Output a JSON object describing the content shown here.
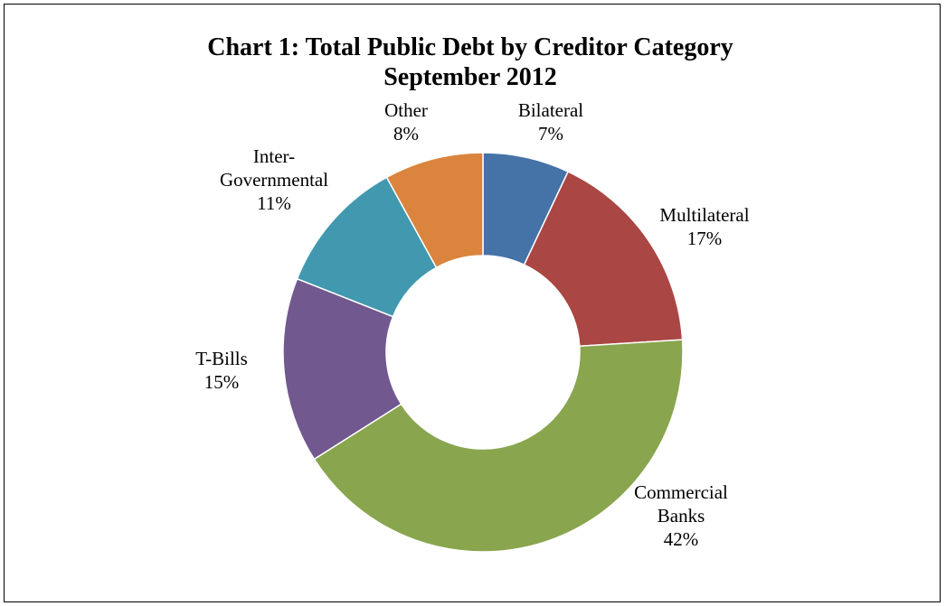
{
  "chart_data": {
    "type": "pie",
    "donut": true,
    "title": "Chart 1: Total Public Debt by Creditor Category",
    "subtitle": "September 2012",
    "slices": [
      {
        "label_lines": [
          "Bilateral"
        ],
        "pct_label": "7%",
        "value": 7,
        "color": "#4572A7"
      },
      {
        "label_lines": [
          "Multilateral"
        ],
        "pct_label": "17%",
        "value": 17,
        "color": "#AA4643"
      },
      {
        "label_lines": [
          "Commercial",
          "Banks"
        ],
        "pct_label": "42%",
        "value": 42,
        "color": "#89A54E"
      },
      {
        "label_lines": [
          "T-Bills"
        ],
        "pct_label": "15%",
        "value": 15,
        "color": "#71588F"
      },
      {
        "label_lines": [
          "Inter-",
          "Governmental"
        ],
        "pct_label": "11%",
        "value": 11,
        "color": "#4198AF"
      },
      {
        "label_lines": [
          "Other"
        ],
        "pct_label": "8%",
        "value": 8,
        "color": "#DB843D"
      }
    ]
  }
}
